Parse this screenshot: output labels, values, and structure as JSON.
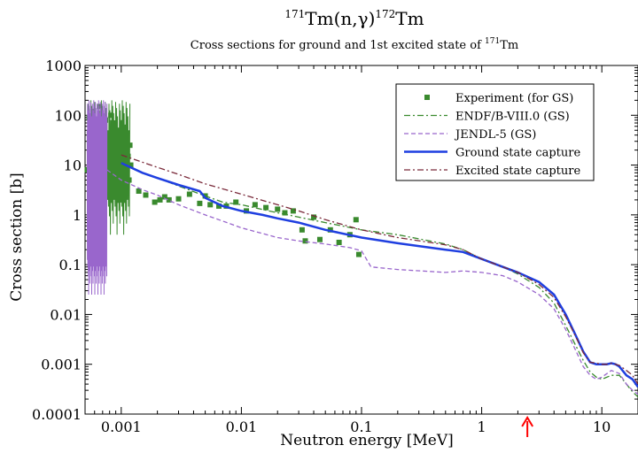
{
  "chart_data": {
    "type": "line",
    "title": {
      "target": "Tm",
      "target_mass": "171",
      "reaction": "(n,γ)",
      "product": "Tm",
      "product_mass": "172"
    },
    "subtitle": {
      "text": "Cross sections for ground and 1st excited state of ",
      "element": "Tm",
      "mass": "171"
    },
    "xlabel": "Neutron energy [MeV]",
    "ylabel": "Cross section [b]",
    "x_scale": "log",
    "y_scale": "log",
    "xlim": [
      0.0005,
      20
    ],
    "ylim": [
      0.0001,
      1000
    ],
    "x_ticks": [
      {
        "value": 0.001,
        "label": "0.001"
      },
      {
        "value": 0.01,
        "label": "0.01"
      },
      {
        "value": 0.1,
        "label": "0.1"
      },
      {
        "value": 1,
        "label": "1"
      },
      {
        "value": 10,
        "label": "10"
      }
    ],
    "y_ticks": [
      {
        "value": 0.0001,
        "label": "0.0001"
      },
      {
        "value": 0.001,
        "label": "0.001"
      },
      {
        "value": 0.01,
        "label": "0.01"
      },
      {
        "value": 0.1,
        "label": "0.1"
      },
      {
        "value": 1,
        "label": "1"
      },
      {
        "value": 10,
        "label": "10"
      },
      {
        "value": 100,
        "label": "100"
      },
      {
        "value": 1000,
        "label": "1000"
      }
    ],
    "grid": false,
    "legend_position": "top-right",
    "arrow_marker_x": 2.4,
    "arrow_color": "#ff0000",
    "series": [
      {
        "name": "Experiment (for GS)",
        "style": "square-markers",
        "color": "#3a8a2e",
        "x": [
          0.00052,
          0.00054,
          0.00056,
          0.00058,
          0.0006,
          0.00062,
          0.00064,
          0.00066,
          0.00068,
          0.0007,
          0.00072,
          0.00074,
          0.00076,
          0.00078,
          0.0008,
          0.00082,
          0.00084,
          0.00086,
          0.00088,
          0.0009,
          0.00092,
          0.00094,
          0.00096,
          0.00098,
          0.001,
          0.00102,
          0.00104,
          0.00106,
          0.00108,
          0.0011,
          0.00112,
          0.00114,
          0.00116,
          0.00118,
          0.0012,
          0.0014,
          0.0016,
          0.0019,
          0.0021,
          0.0023,
          0.0025,
          0.003,
          0.0037,
          0.0045,
          0.005,
          0.0055,
          0.0065,
          0.0075,
          0.009,
          0.011,
          0.013,
          0.016,
          0.02,
          0.023,
          0.027,
          0.032,
          0.034,
          0.04,
          0.045,
          0.055,
          0.065,
          0.08,
          0.09,
          0.095
        ],
        "y": [
          8,
          90,
          3,
          120,
          5,
          60,
          2,
          150,
          10,
          40,
          1.5,
          80,
          6,
          30,
          2.5,
          100,
          12,
          5,
          70,
          3,
          25,
          9,
          50,
          2,
          15,
          40,
          6,
          20,
          4,
          30,
          8,
          15,
          5,
          25,
          10,
          3,
          2.5,
          1.8,
          2,
          2.3,
          2,
          2.1,
          2.6,
          1.7,
          2.4,
          1.6,
          1.5,
          1.5,
          1.8,
          1.2,
          1.6,
          1.4,
          1.3,
          1.1,
          1.2,
          0.5,
          0.3,
          0.9,
          0.32,
          0.5,
          0.28,
          0.4,
          0.8,
          0.16
        ]
      },
      {
        "name": "ENDF/B-VIII.0 (GS)",
        "style": "dash-dot",
        "color": "#3a8a2e",
        "resonance_band": {
          "x": [
            0.00052,
            0.00118
          ],
          "y_low": 0.4,
          "y_high": 200
        },
        "x": [
          0.00118,
          0.0015,
          0.002,
          0.003,
          0.005,
          0.007,
          0.01,
          0.02,
          0.03,
          0.05,
          0.1,
          0.2,
          0.5,
          0.7,
          1,
          1.5,
          2,
          3,
          4,
          5,
          6,
          7,
          8,
          9,
          10,
          12,
          14,
          16,
          18,
          20
        ],
        "y": [
          9,
          7,
          5.5,
          3.8,
          2.4,
          1.8,
          1.6,
          1.1,
          0.9,
          0.7,
          0.5,
          0.4,
          0.26,
          0.2,
          0.13,
          0.09,
          0.065,
          0.035,
          0.017,
          0.006,
          0.0025,
          0.0012,
          0.0007,
          0.00055,
          0.0005,
          0.0006,
          0.0006,
          0.0004,
          0.00028,
          0.00022
        ]
      },
      {
        "name": "JENDL-5 (GS)",
        "style": "dashed",
        "color": "#9966cc",
        "resonance_band": {
          "x": [
            0.00052,
            0.00076
          ],
          "y_low": 0.025,
          "y_high": 200
        },
        "x": [
          0.00076,
          0.001,
          0.0015,
          0.002,
          0.003,
          0.005,
          0.007,
          0.01,
          0.02,
          0.03,
          0.05,
          0.08,
          0.1,
          0.12,
          0.2,
          0.5,
          0.7,
          1,
          1.5,
          2,
          3,
          4,
          5,
          6,
          7,
          8,
          9,
          10,
          12,
          14,
          16,
          18,
          20
        ],
        "y": [
          8,
          5,
          3.2,
          2.5,
          1.6,
          1,
          0.75,
          0.55,
          0.35,
          0.3,
          0.26,
          0.22,
          0.19,
          0.09,
          0.08,
          0.07,
          0.075,
          0.07,
          0.06,
          0.045,
          0.025,
          0.013,
          0.005,
          0.002,
          0.0009,
          0.0006,
          0.0005,
          0.00055,
          0.00075,
          0.00065,
          0.0004,
          0.0003,
          0.00025
        ]
      },
      {
        "name": "Ground state capture",
        "style": "solid",
        "color": "#1f3fe0",
        "x": [
          0.001,
          0.0015,
          0.002,
          0.003,
          0.0045,
          0.005,
          0.007,
          0.01,
          0.015,
          0.02,
          0.03,
          0.05,
          0.1,
          0.2,
          0.5,
          0.7,
          1,
          1.5,
          2,
          3,
          4,
          5,
          6,
          7,
          8,
          9,
          10,
          11,
          12,
          13,
          14,
          16,
          18,
          20
        ],
        "y": [
          11,
          7,
          5.5,
          4,
          3,
          2.2,
          1.5,
          1.2,
          1,
          0.85,
          0.7,
          0.5,
          0.35,
          0.27,
          0.2,
          0.18,
          0.13,
          0.09,
          0.07,
          0.045,
          0.025,
          0.01,
          0.004,
          0.0018,
          0.0011,
          0.001,
          0.001,
          0.001,
          0.00105,
          0.001,
          0.0009,
          0.0006,
          0.0005,
          0.00035
        ]
      },
      {
        "name": "Excited state capture",
        "style": "dash-dot",
        "color": "#7a2a3a",
        "x": [
          0.001,
          0.002,
          0.003,
          0.005,
          0.01,
          0.02,
          0.03,
          0.05,
          0.1,
          0.2,
          0.5,
          0.7,
          1,
          1.5,
          2,
          3,
          4,
          5,
          6,
          7,
          8,
          9,
          10,
          11,
          12,
          13,
          14,
          16,
          18,
          20
        ],
        "y": [
          16,
          9,
          6.5,
          4.2,
          2.6,
          1.6,
          1.2,
          0.8,
          0.5,
          0.35,
          0.25,
          0.2,
          0.13,
          0.09,
          0.07,
          0.04,
          0.022,
          0.009,
          0.0038,
          0.0017,
          0.0011,
          0.00105,
          0.001,
          0.001,
          0.00105,
          0.001,
          0.00095,
          0.00075,
          0.0006,
          0.0004
        ]
      }
    ]
  }
}
